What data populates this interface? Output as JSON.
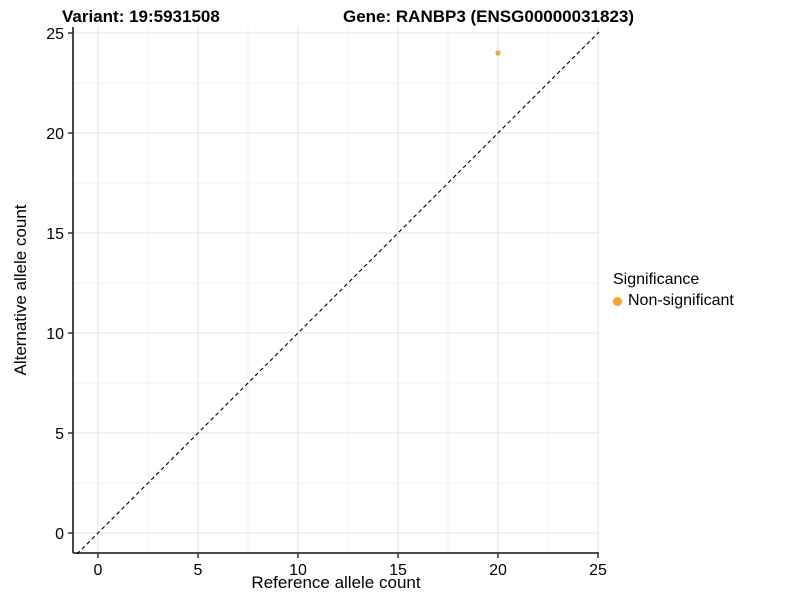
{
  "chart_data": {
    "type": "scatter",
    "title_left": "Variant: 19:5931508",
    "title_right": "Gene: RANBP3 (ENSG00000031823)",
    "xlabel": "Reference allele count",
    "ylabel": "Alternative allele count",
    "x_ticks": [
      0,
      5,
      10,
      15,
      20,
      25
    ],
    "y_ticks": [
      0,
      5,
      10,
      15,
      20,
      25
    ],
    "xlim": [
      -1.25,
      25.05
    ],
    "ylim": [
      -1.05,
      25.3
    ],
    "grid": "major+minor",
    "reference_line": {
      "type": "identity",
      "style": "dashed",
      "color": "#000000"
    },
    "series": [
      {
        "name": "Non-significant",
        "color": "#F9A32B",
        "points": [
          {
            "x": 20,
            "y": 24
          }
        ]
      }
    ],
    "legend": {
      "title": "Significance",
      "position": "right",
      "items": [
        {
          "label": "Non-significant",
          "color": "#F9A32B",
          "marker": "circle"
        }
      ]
    },
    "colors": {
      "background": "#FFFFFF",
      "grid_major": "#E3E3E3",
      "grid_minor": "#F1F1F1",
      "axis": "#333333",
      "tick_text": "#000000",
      "point": "#F9A32B"
    }
  }
}
